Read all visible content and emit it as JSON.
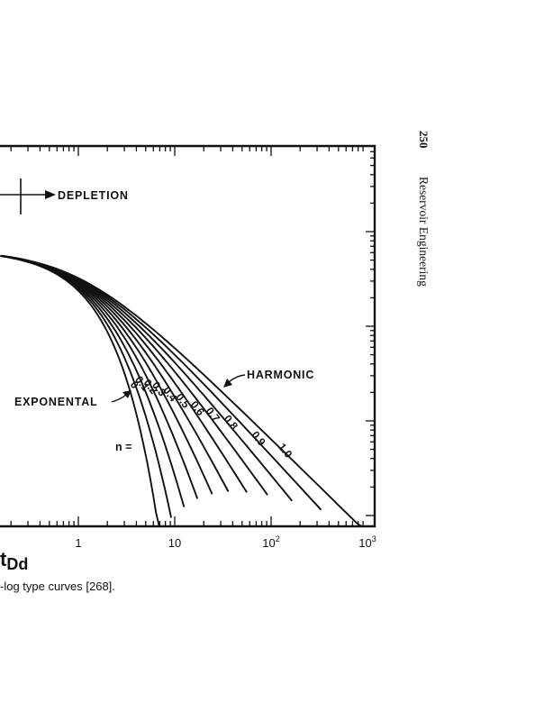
{
  "page": {
    "page_number": "250",
    "running_head": "Reservoir Engineering",
    "caption": "-log type curves [268]."
  },
  "chart_data": {
    "type": "line",
    "xscale": "log",
    "yscale": "log",
    "xlim": [
      0.01,
      1000
    ],
    "x_ticks": [
      {
        "value": 1,
        "label": "1"
      },
      {
        "value": 10,
        "label": "10"
      },
      {
        "value": 100,
        "label": "10",
        "sup": "2"
      },
      {
        "value": 1000,
        "label": "10",
        "sup": "3"
      }
    ],
    "xlabel": "t",
    "xlabel_sub": "Dd",
    "labels": {
      "depletion": "DEPLETION",
      "harmonic": "HARMONIC",
      "exponential": "EXPONENTAL",
      "n_prefix": "n ="
    },
    "series": [
      {
        "name": "0",
        "b": 0.0,
        "tend": 6.9
      },
      {
        "name": "0.1",
        "b": 0.1,
        "tend": 9.2
      },
      {
        "name": "0.2",
        "b": 0.2,
        "tend": 12.5
      },
      {
        "name": "0.3",
        "b": 0.3,
        "tend": 17.2
      },
      {
        "name": "0.4",
        "b": 0.4,
        "tend": 24.5
      },
      {
        "name": "0.5",
        "b": 0.5,
        "tend": 36
      },
      {
        "name": "0.6",
        "b": 0.6,
        "tend": 56
      },
      {
        "name": "0.7",
        "b": 0.7,
        "tend": 92
      },
      {
        "name": "0.8",
        "b": 0.8,
        "tend": 165
      },
      {
        "name": "0.9",
        "b": 0.9,
        "tend": 330
      },
      {
        "name": "1.0",
        "b": 1.0,
        "tend": 870
      }
    ]
  }
}
